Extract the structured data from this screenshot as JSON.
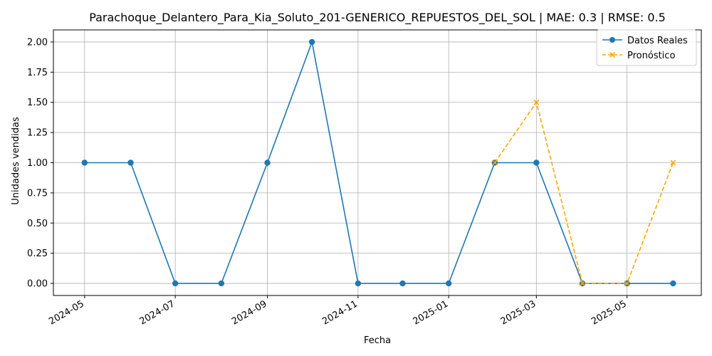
{
  "chart_data": {
    "type": "line",
    "title": "Parachoque_Delantero_Para_Kia_Soluto_201-GENERICO_REPUESTOS_DEL_SOL | MAE: 0.3 | RMSE: 0.5",
    "xlabel": "Fecha",
    "ylabel": "Unidades vendidas",
    "ylim": [
      -0.1,
      2.1
    ],
    "xlim": [
      "2024-04-10",
      "2025-06-20"
    ],
    "grid": true,
    "legend_position": "top-right",
    "x_ticks": [
      "2024-05-01",
      "2024-07-01",
      "2024-09-01",
      "2024-11-01",
      "2025-01-01",
      "2025-03-01",
      "2025-05-01"
    ],
    "x_tick_labels": [
      "2024-05",
      "2024-07",
      "2024-09",
      "2024-11",
      "2025-01",
      "2025-03",
      "2025-05"
    ],
    "y_ticks": [
      0.0,
      0.25,
      0.5,
      0.75,
      1.0,
      1.25,
      1.5,
      1.75,
      2.0
    ],
    "y_tick_labels": [
      "0.00",
      "0.25",
      "0.50",
      "0.75",
      "1.00",
      "1.25",
      "1.50",
      "1.75",
      "2.00"
    ],
    "series": [
      {
        "name": "Datos Reales",
        "color": "#1f77b4",
        "style": "solid",
        "marker": "circle",
        "x": [
          "2024-05-01",
          "2024-06-01",
          "2024-07-01",
          "2024-08-01",
          "2024-09-01",
          "2024-10-01",
          "2024-11-01",
          "2024-12-01",
          "2025-01-01",
          "2025-02-01",
          "2025-03-01",
          "2025-04-01",
          "2025-05-01",
          "2025-06-01"
        ],
        "values": [
          1,
          1,
          0,
          0,
          1,
          2,
          0,
          0,
          0,
          1,
          1,
          0,
          0,
          0
        ]
      },
      {
        "name": "Pronóstico",
        "color": "#ffa500",
        "style": "dashed",
        "marker": "x",
        "x": [
          "2025-02-01",
          "2025-03-01",
          "2025-04-01",
          "2025-05-01",
          "2025-06-01"
        ],
        "values": [
          1.0,
          1.5,
          0.0,
          0.0,
          1.0
        ]
      }
    ]
  }
}
